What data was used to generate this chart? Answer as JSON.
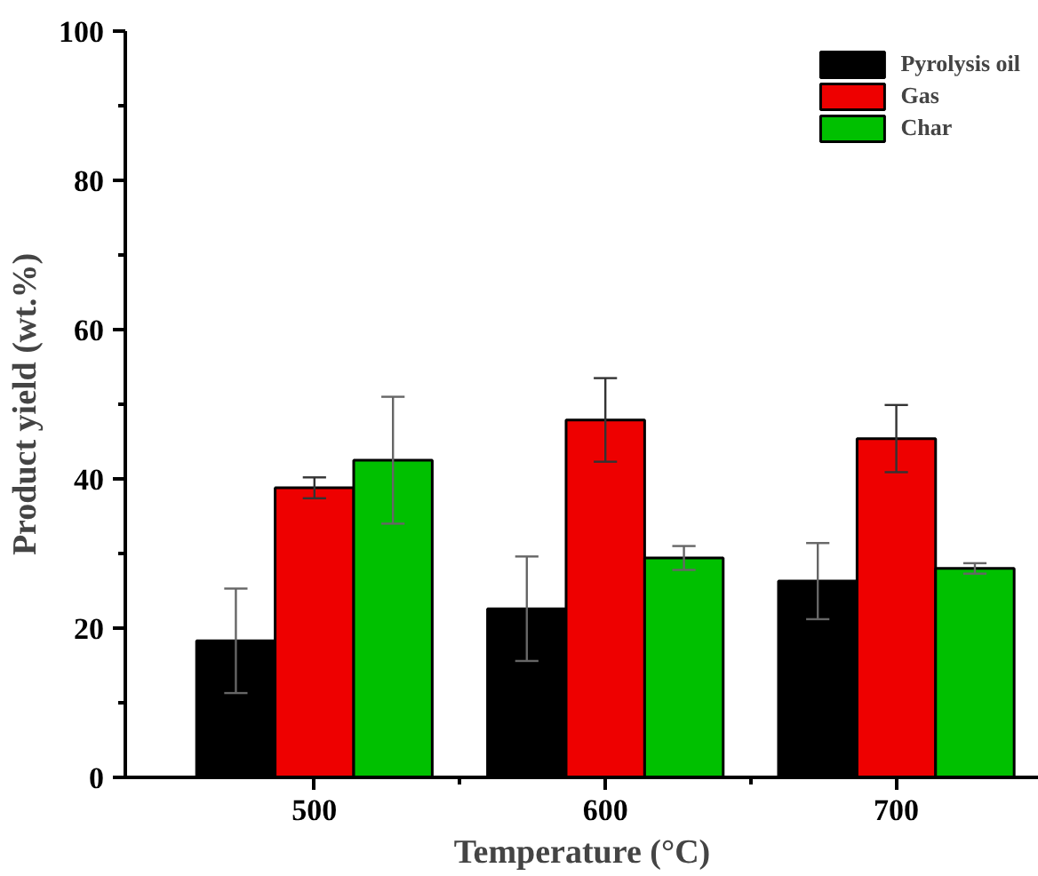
{
  "chart_data": {
    "type": "bar",
    "xlabel": "Temperature (°C)",
    "ylabel": "Product yield (wt.%)",
    "categories": [
      "500",
      "600",
      "700"
    ],
    "series": [
      {
        "name": "Pyrolysis oil",
        "color": "#000000",
        "values": [
          18.3,
          22.6,
          26.3
        ],
        "errors": [
          7.0,
          7.0,
          5.1
        ]
      },
      {
        "name": "Gas",
        "color": "#ee0000",
        "values": [
          38.8,
          47.9,
          45.4
        ],
        "errors": [
          1.4,
          5.6,
          4.5
        ]
      },
      {
        "name": "Char",
        "color": "#00c000",
        "values": [
          42.5,
          29.4,
          28.0
        ],
        "errors": [
          8.5,
          1.6,
          0.7
        ]
      }
    ],
    "ylim": [
      0,
      100
    ],
    "yticks": [
      0,
      20,
      40,
      60,
      80,
      100
    ],
    "grid": false,
    "legend": "top right"
  }
}
